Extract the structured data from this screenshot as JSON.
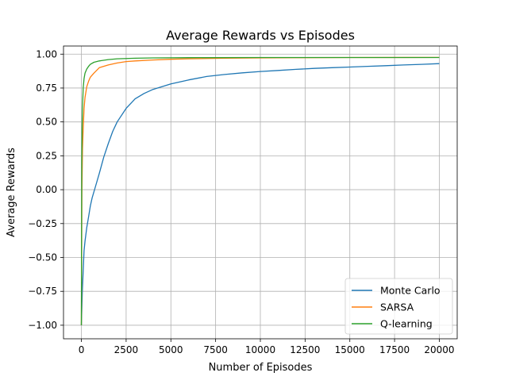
{
  "chart_data": {
    "type": "line",
    "title": "Average Rewards vs Episodes",
    "xlabel": "Number of Episodes",
    "ylabel": "Average Rewards",
    "xlim": [
      -1000,
      21000
    ],
    "ylim": [
      -1.1,
      1.06
    ],
    "xticks": [
      0,
      2500,
      5000,
      7500,
      10000,
      12500,
      15000,
      17500,
      20000
    ],
    "xtick_labels": [
      "0",
      "2500",
      "5000",
      "7500",
      "10000",
      "12500",
      "15000",
      "17500",
      "20000"
    ],
    "yticks": [
      -1.0,
      -0.75,
      -0.5,
      -0.25,
      0.0,
      0.25,
      0.5,
      0.75,
      1.0
    ],
    "ytick_labels": [
      "−1.00",
      "−0.75",
      "−0.50",
      "−0.25",
      "0.00",
      "0.25",
      "0.50",
      "0.75",
      "1.00"
    ],
    "grid": true,
    "legend_position": "lower-right",
    "series": [
      {
        "name": "Monte Carlo",
        "color": "#1f77b4",
        "x": [
          0,
          50,
          100,
          150,
          200,
          300,
          400,
          500,
          600,
          800,
          1000,
          1250,
          1500,
          1750,
          2000,
          2500,
          3000,
          3500,
          4000,
          4500,
          5000,
          6000,
          7000,
          8000,
          9000,
          10000,
          11000,
          12000,
          13000,
          14000,
          15000,
          16000,
          17000,
          18000,
          19000,
          20000
        ],
        "y": [
          -1.0,
          -0.75,
          -0.6,
          -0.45,
          -0.38,
          -0.28,
          -0.2,
          -0.12,
          -0.06,
          0.03,
          0.12,
          0.24,
          0.34,
          0.43,
          0.5,
          0.6,
          0.67,
          0.71,
          0.74,
          0.76,
          0.78,
          0.81,
          0.835,
          0.85,
          0.862,
          0.872,
          0.88,
          0.888,
          0.895,
          0.9,
          0.905,
          0.91,
          0.915,
          0.92,
          0.925,
          0.93
        ]
      },
      {
        "name": "SARSA",
        "color": "#ff7f0e",
        "x": [
          0,
          30,
          60,
          100,
          150,
          200,
          300,
          400,
          500,
          700,
          1000,
          1500,
          2000,
          2500,
          3000,
          4000,
          5000,
          6000,
          8000,
          10000,
          12000,
          15000,
          20000
        ],
        "y": [
          -1.0,
          0.0,
          0.3,
          0.45,
          0.6,
          0.68,
          0.76,
          0.8,
          0.83,
          0.86,
          0.9,
          0.92,
          0.935,
          0.945,
          0.95,
          0.957,
          0.962,
          0.966,
          0.97,
          0.972,
          0.974,
          0.975,
          0.976
        ]
      },
      {
        "name": "Q-learning",
        "color": "#2ca02c",
        "x": [
          0,
          20,
          40,
          60,
          100,
          150,
          200,
          300,
          400,
          500,
          700,
          1000,
          1500,
          2000,
          3000,
          4000,
          6000,
          10000,
          15000,
          20000
        ],
        "y": [
          -1.0,
          0.2,
          0.45,
          0.6,
          0.75,
          0.82,
          0.86,
          0.89,
          0.91,
          0.925,
          0.94,
          0.95,
          0.96,
          0.966,
          0.97,
          0.972,
          0.974,
          0.975,
          0.975,
          0.975
        ]
      }
    ]
  }
}
